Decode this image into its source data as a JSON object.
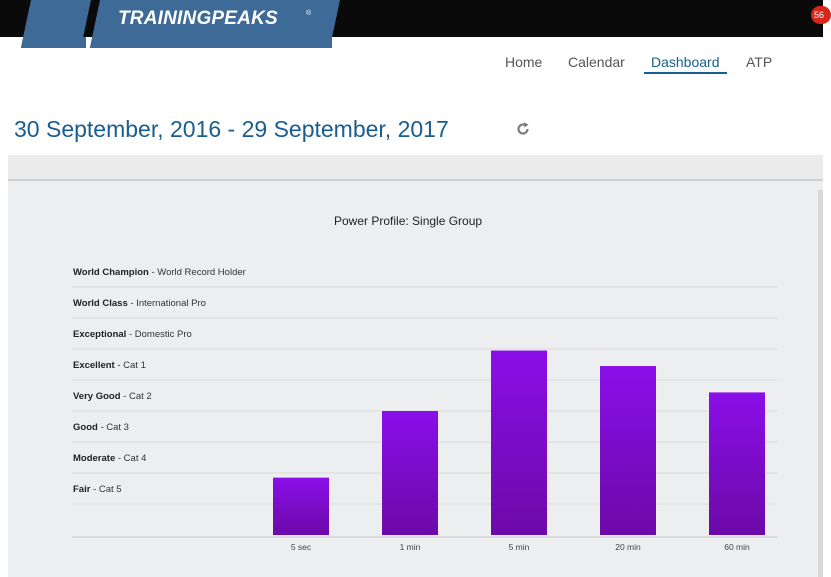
{
  "header": {
    "logo_text": "TRAININGPEAKS",
    "logo_trademark": "®",
    "notification_count": "56"
  },
  "nav": {
    "items": [
      {
        "label": "Home",
        "active": false
      },
      {
        "label": "Calendar",
        "active": false
      },
      {
        "label": "Dashboard",
        "active": true
      },
      {
        "label": "ATP",
        "active": false
      }
    ]
  },
  "date_range": "30 September, 2016 - 29 September, 2017",
  "colors": {
    "accent": "#1a5d8f",
    "bar_top": "#8a0ee8",
    "bar_bottom": "#6c0aa8",
    "badge": "#d9251c"
  },
  "chart_data": {
    "type": "bar",
    "title": "Power Profile: Single Group",
    "categories": [
      "5 sec",
      "1 min",
      "5 min",
      "20 min",
      "60 min"
    ],
    "levels": [
      {
        "name": "World Champion",
        "desc": "World Record Holder"
      },
      {
        "name": "World Class",
        "desc": "International Pro"
      },
      {
        "name": "Exceptional",
        "desc": "Domestic Pro"
      },
      {
        "name": "Excellent",
        "desc": "Cat 1"
      },
      {
        "name": "Very Good",
        "desc": "Cat 2"
      },
      {
        "name": "Good",
        "desc": "Cat 3"
      },
      {
        "name": "Moderate",
        "desc": "Cat 4"
      },
      {
        "name": "Fair",
        "desc": "Cat 5"
      }
    ],
    "values": [
      1.85,
      4.0,
      5.95,
      5.45,
      4.6
    ],
    "ylim": [
      0,
      9
    ],
    "grid": true
  }
}
